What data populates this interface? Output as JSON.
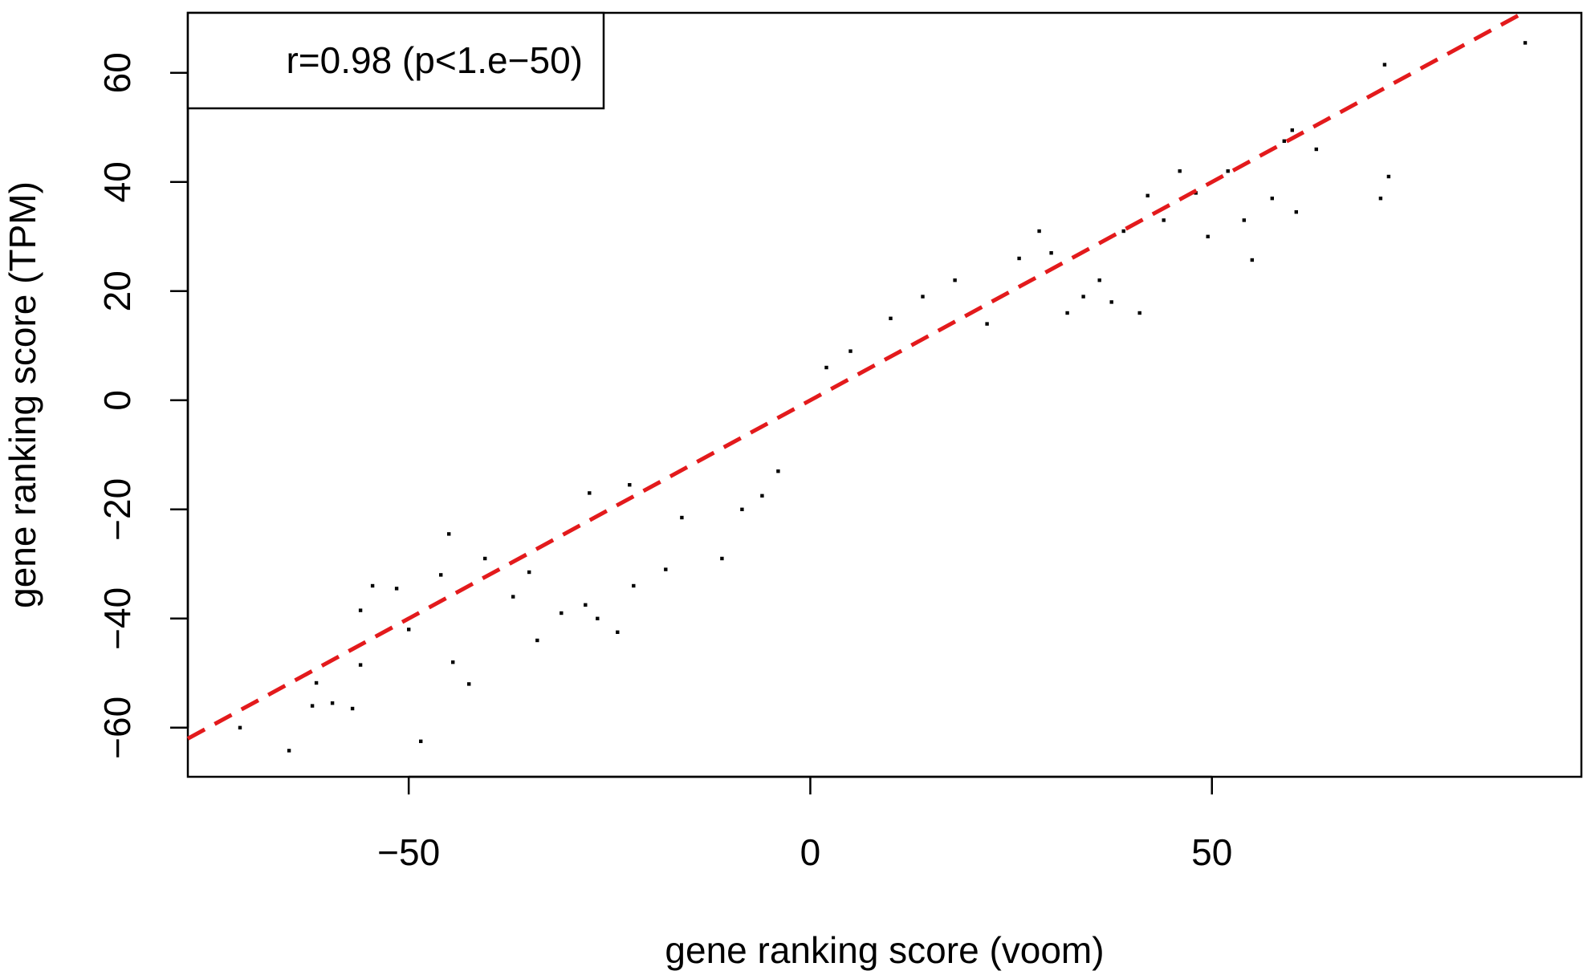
{
  "chart_data": {
    "type": "scatter",
    "title": "",
    "xlabel": "gene ranking score (voom)",
    "ylabel": "gene ranking score (TPM)",
    "xlim": [
      -77.5,
      96
    ],
    "ylim": [
      -69,
      71
    ],
    "xticks": [
      -50,
      0,
      50
    ],
    "yticks": [
      -60,
      -40,
      -20,
      0,
      20,
      40,
      60
    ],
    "xtick_labels": [
      "−50",
      "0",
      "50"
    ],
    "ytick_labels": [
      "−60",
      "−40",
      "−20",
      "0",
      "20",
      "40",
      "60"
    ],
    "grid": false,
    "legend": {
      "text": "r=0.98 (p<1.e−50)",
      "placement": "top-left"
    },
    "fit_line": {
      "slope": 0.8,
      "intercept": 0,
      "style": "dashed",
      "color": "#e31a1c"
    },
    "colors": {
      "points": "#000000",
      "fit_line": "#e31a1c"
    },
    "series": [
      {
        "name": "",
        "points": [
          [
            -71.0,
            -60.0
          ],
          [
            -64.9,
            -64.2
          ],
          [
            -62.0,
            -56.0
          ],
          [
            -59.5,
            -55.5
          ],
          [
            -57.0,
            -56.5
          ],
          [
            -61.5,
            -51.8
          ],
          [
            -56.0,
            -48.5
          ],
          [
            -54.5,
            -34.0
          ],
          [
            -51.5,
            -34.5
          ],
          [
            -48.5,
            -62.5
          ],
          [
            -56.0,
            -38.5
          ],
          [
            -50.0,
            -42.0
          ],
          [
            -46.0,
            -32.0
          ],
          [
            -45.0,
            -24.5
          ],
          [
            -44.5,
            -48.0
          ],
          [
            -42.5,
            -52.0
          ],
          [
            -40.5,
            -29.0
          ],
          [
            -37.0,
            -36.0
          ],
          [
            -35.0,
            -31.5
          ],
          [
            -34.0,
            -44.0
          ],
          [
            -31.0,
            -39.0
          ],
          [
            -28.0,
            -37.5
          ],
          [
            -26.5,
            -40.0
          ],
          [
            -24.0,
            -42.5
          ],
          [
            -22.0,
            -34.0
          ],
          [
            -27.5,
            -17.0
          ],
          [
            -22.5,
            -15.5
          ],
          [
            -16.0,
            -21.5
          ],
          [
            -11.0,
            -29.0
          ],
          [
            -18.0,
            -31.0
          ],
          [
            -8.5,
            -20.0
          ],
          [
            -6.0,
            -17.5
          ],
          [
            -4.0,
            -13.0
          ],
          [
            2.0,
            6.0
          ],
          [
            5.0,
            9.0
          ],
          [
            10.0,
            15.0
          ],
          [
            14.0,
            19.0
          ],
          [
            18.0,
            22.0
          ],
          [
            22.0,
            14.0
          ],
          [
            26.0,
            26.0
          ],
          [
            28.5,
            31.0
          ],
          [
            30.0,
            27.0
          ],
          [
            32.0,
            16.0
          ],
          [
            34.0,
            19.0
          ],
          [
            36.0,
            22.0
          ],
          [
            37.5,
            18.0
          ],
          [
            39.0,
            31.0
          ],
          [
            41.0,
            16.0
          ],
          [
            42.0,
            37.5
          ],
          [
            44.0,
            33.0
          ],
          [
            46.0,
            42.0
          ],
          [
            48.0,
            38.0
          ],
          [
            49.5,
            30.0
          ],
          [
            52.0,
            42.0
          ],
          [
            54.0,
            33.0
          ],
          [
            55.0,
            25.7
          ],
          [
            57.5,
            37.0
          ],
          [
            59.0,
            47.5
          ],
          [
            60.0,
            49.5
          ],
          [
            60.5,
            34.5
          ],
          [
            63.0,
            46.0
          ],
          [
            71.0,
            37.0
          ],
          [
            71.5,
            61.5
          ],
          [
            72.0,
            41.0
          ],
          [
            89.0,
            65.5
          ]
        ]
      }
    ]
  }
}
